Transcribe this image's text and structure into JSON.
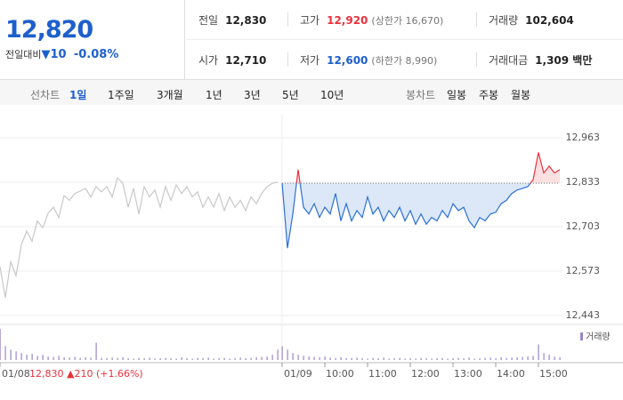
{
  "header": {
    "price": "12,820",
    "change_label": "전일대비",
    "change": "▼10",
    "change_pct": "-0.08%",
    "stats": [
      [
        {
          "label": "전일",
          "value": "12,830"
        },
        {
          "label": "고가",
          "value": "12,920",
          "note": "(상한가 16,670)"
        },
        {
          "label": "거래량",
          "value": "102,604"
        }
      ],
      [
        {
          "label": "시가",
          "value": "12,710"
        },
        {
          "label": "저가",
          "value": "12,600",
          "note": "(하한가 8,990)"
        },
        {
          "label": "거래대금",
          "value": "1,309 백만"
        }
      ]
    ]
  },
  "tabs": {
    "line_label": "선차트",
    "line_items": [
      "1일",
      "1주일",
      "3개월",
      "1년",
      "3년",
      "5년",
      "10년"
    ],
    "active": 0,
    "candle_label": "봉차트",
    "candle_items": [
      "일봉",
      "주봉",
      "월봉"
    ]
  },
  "chart_data": {
    "type": "line",
    "ylim": [
      12443,
      12963
    ],
    "yticks": [
      {
        "value": 12443,
        "label": "12,443"
      },
      {
        "value": 12573,
        "label": "12,573"
      },
      {
        "value": 12703,
        "label": "12,703"
      },
      {
        "value": 12833,
        "label": "12,833"
      },
      {
        "value": 12963,
        "label": "12,963"
      }
    ],
    "grid": true,
    "volume_label": "거래량",
    "volume_color": "#9a86c6",
    "sessions": [
      {
        "date": "01/08",
        "summary": "12,830 ▲210 (+1.66%)",
        "xlim": [
          9,
          15.5
        ],
        "color": "#c8c8c8",
        "xticks": [],
        "x": [
          9,
          9.125,
          9.25,
          9.375,
          9.5,
          9.625,
          9.75,
          9.875,
          10,
          10.125,
          10.25,
          10.375,
          10.5,
          10.625,
          10.75,
          10.875,
          11,
          11.125,
          11.25,
          11.375,
          11.5,
          11.625,
          11.75,
          11.875,
          12,
          12.125,
          12.25,
          12.375,
          12.5,
          12.625,
          12.75,
          12.875,
          13,
          13.125,
          13.25,
          13.375,
          13.5,
          13.625,
          13.75,
          13.875,
          14,
          14.125,
          14.25,
          14.375,
          14.5,
          14.625,
          14.75,
          14.875,
          15,
          15.125,
          15.25,
          15.375,
          15.5
        ],
        "values": [
          12586,
          12495,
          12600,
          12560,
          12650,
          12690,
          12660,
          12720,
          12700,
          12742,
          12760,
          12730,
          12794,
          12780,
          12800,
          12807,
          12815,
          12790,
          12820,
          12805,
          12820,
          12790,
          12846,
          12830,
          12760,
          12815,
          12740,
          12820,
          12790,
          12810,
          12760,
          12820,
          12780,
          12825,
          12800,
          12820,
          12790,
          12805,
          12760,
          12790,
          12760,
          12800,
          12750,
          12790,
          12760,
          12780,
          12750,
          12790,
          12770,
          12800,
          12820,
          12830,
          12833
        ],
        "volumes": [
          9000,
          4000,
          3000,
          2500,
          2000,
          1500,
          1800,
          1200,
          1500,
          1000,
          900,
          1200,
          800,
          700,
          900,
          600,
          800,
          700,
          5000,
          600,
          500,
          700,
          600,
          800,
          500,
          400,
          600,
          500,
          700,
          400,
          500,
          600,
          500,
          400,
          800,
          500,
          400,
          600,
          500,
          700,
          400,
          500,
          600,
          400,
          500,
          700,
          500,
          600,
          800,
          900,
          1000,
          1500,
          3000
        ]
      },
      {
        "date": "01/09",
        "xlim": [
          9,
          15.5
        ],
        "color": "#2a6fd6",
        "above_color": "#e8323c",
        "fill": "#dce8f8",
        "above_fill": "#fbe0e2",
        "reference": 12830,
        "xticks": [
          {
            "value": 10,
            "label": "10:00"
          },
          {
            "value": 11,
            "label": "11:00"
          },
          {
            "value": 12,
            "label": "12:00"
          },
          {
            "value": 13,
            "label": "13:00"
          },
          {
            "value": 14,
            "label": "14:00"
          },
          {
            "value": 15,
            "label": "15:00"
          }
        ],
        "x": [
          9,
          9.125,
          9.25,
          9.375,
          9.5,
          9.625,
          9.75,
          9.875,
          10,
          10.125,
          10.25,
          10.375,
          10.5,
          10.625,
          10.75,
          10.875,
          11,
          11.125,
          11.25,
          11.375,
          11.5,
          11.625,
          11.75,
          11.875,
          12,
          12.125,
          12.25,
          12.375,
          12.5,
          12.625,
          12.75,
          12.875,
          13,
          13.125,
          13.25,
          13.375,
          13.5,
          13.625,
          13.75,
          13.875,
          14,
          14.125,
          14.25,
          14.375,
          14.5,
          14.625,
          14.75,
          14.875,
          15,
          15.125,
          15.25,
          15.375,
          15.5
        ],
        "values": [
          12830,
          12640,
          12740,
          12870,
          12760,
          12740,
          12770,
          12730,
          12760,
          12740,
          12800,
          12720,
          12770,
          12720,
          12750,
          12730,
          12790,
          12740,
          12760,
          12720,
          12750,
          12730,
          12760,
          12720,
          12750,
          12710,
          12740,
          12710,
          12730,
          12720,
          12750,
          12730,
          12770,
          12750,
          12760,
          12720,
          12700,
          12730,
          12720,
          12740,
          12745,
          12770,
          12780,
          12800,
          12810,
          12815,
          12820,
          12840,
          12920,
          12860,
          12880,
          12860,
          12870
        ],
        "volumes": [
          4000,
          3000,
          2000,
          1500,
          1200,
          1000,
          900,
          800,
          1000,
          700,
          600,
          800,
          500,
          600,
          700,
          500,
          400,
          600,
          500,
          700,
          400,
          500,
          600,
          400,
          500,
          400,
          600,
          500,
          400,
          500,
          600,
          400,
          500,
          600,
          500,
          700,
          400,
          500,
          600,
          700,
          500,
          800,
          600,
          700,
          800,
          900,
          1000,
          1200,
          4500,
          2000,
          1500,
          1000,
          800
        ]
      }
    ]
  }
}
